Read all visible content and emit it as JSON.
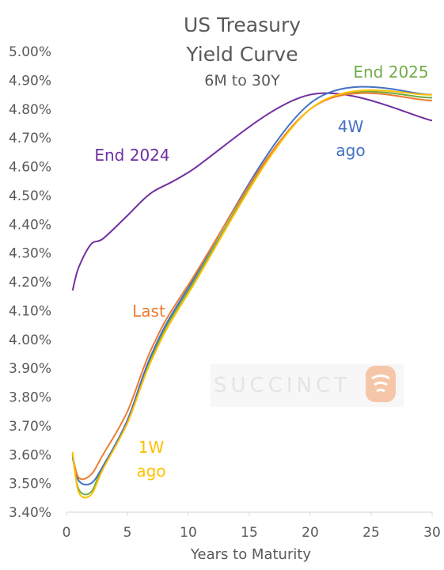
{
  "chart_data": {
    "type": "line",
    "title": "US Treasury",
    "title_line2": "Yield Curve",
    "subtitle": "6M to 30Y",
    "xlabel": "Years to Maturity",
    "ylabel": "",
    "xlim": [
      0,
      30
    ],
    "ylim": [
      3.4,
      5.0
    ],
    "x_ticks": [
      "0",
      "5",
      "10",
      "15",
      "20",
      "25",
      "30"
    ],
    "y_ticks": [
      "3.40%",
      "3.50%",
      "3.60%",
      "3.70%",
      "3.80%",
      "3.90%",
      "4.00%",
      "4.10%",
      "4.20%",
      "4.30%",
      "4.40%",
      "4.50%",
      "4.60%",
      "4.70%",
      "4.80%",
      "4.90%",
      "5.00%"
    ],
    "grid": false,
    "legend": "inline labels",
    "watermark": "SUCCINCT",
    "series": [
      {
        "name": "End 2024",
        "label_lines": [
          "End 2024"
        ],
        "color": "#7030a0",
        "x": [
          0.5,
          1,
          2,
          3,
          5,
          7,
          10,
          20,
          30
        ],
        "values": [
          4.17,
          4.25,
          4.33,
          4.35,
          4.43,
          4.51,
          4.58,
          4.85,
          4.76
        ]
      },
      {
        "name": "End 2025",
        "label_lines": [
          "End 2025"
        ],
        "color": "#70ad47",
        "x": [
          0.5,
          1,
          2,
          3,
          5,
          7,
          10,
          20,
          30
        ],
        "values": [
          3.6,
          3.48,
          3.47,
          3.56,
          3.71,
          3.94,
          4.17,
          4.8,
          4.84
        ]
      },
      {
        "name": "4W ago",
        "label_lines": [
          "4W",
          "ago"
        ],
        "color": "#4472c4",
        "x": [
          0.5,
          1,
          2,
          3,
          5,
          7,
          10,
          20,
          30
        ],
        "values": [
          3.59,
          3.51,
          3.5,
          3.56,
          3.72,
          3.95,
          4.18,
          4.82,
          4.85
        ]
      },
      {
        "name": "Last",
        "label_lines": [
          "Last"
        ],
        "color": "#ed7d31",
        "x": [
          0.5,
          1,
          2,
          3,
          5,
          7,
          10,
          20,
          30
        ],
        "values": [
          3.6,
          3.52,
          3.53,
          3.6,
          3.75,
          3.97,
          4.19,
          4.8,
          4.83
        ]
      },
      {
        "name": "1W ago",
        "label_lines": [
          "1W",
          "ago"
        ],
        "color": "#ffc000",
        "x": [
          0.5,
          1,
          2,
          3,
          5,
          7,
          10,
          20,
          30
        ],
        "values": [
          3.61,
          3.47,
          3.46,
          3.55,
          3.71,
          3.93,
          4.16,
          4.8,
          4.85
        ]
      }
    ]
  }
}
